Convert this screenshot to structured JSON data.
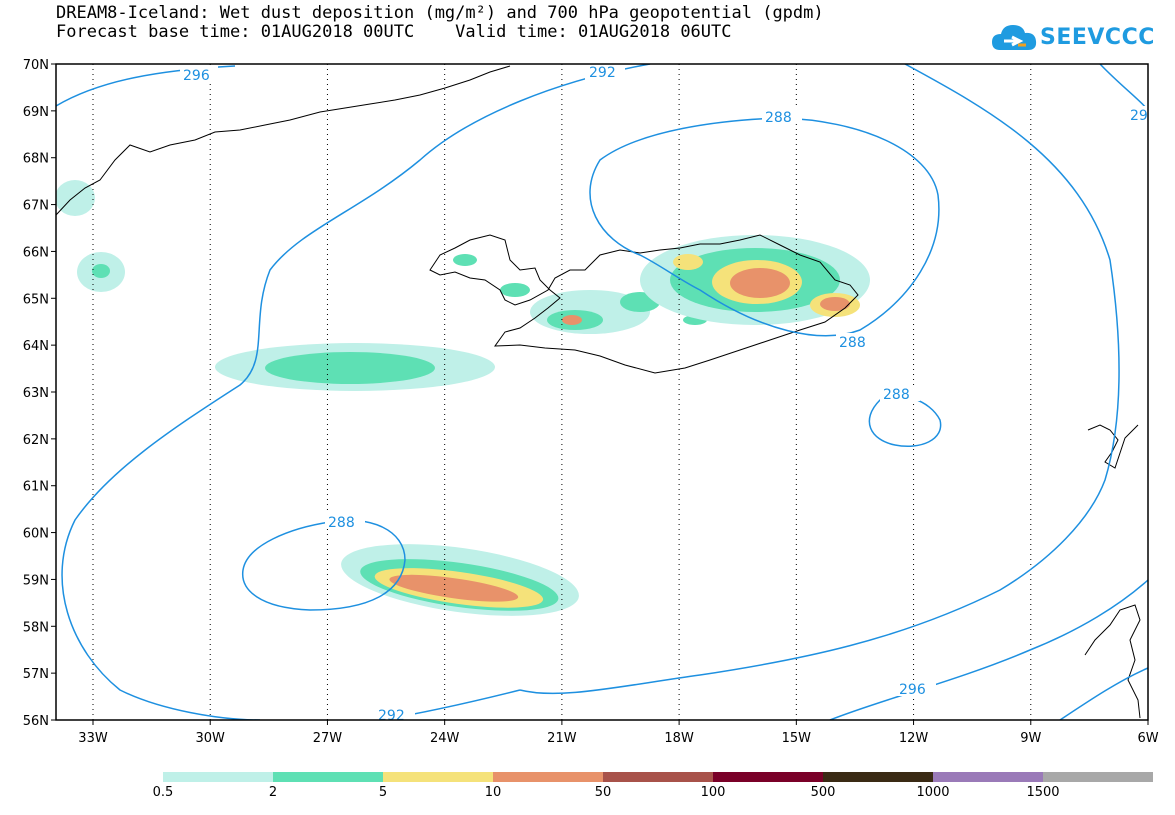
{
  "title": {
    "line1": "DREAM8-Iceland: Wet dust deposition (mg/m²) and 700 hPa geopotential (gpdm)",
    "line2": "Forecast base time: 01AUG2018 00UTC    Valid time: 01AUG2018 06UTC"
  },
  "logo": {
    "text": "SEEVCCC",
    "icon": "cloud-icon",
    "color": "#1f9be0"
  },
  "axes": {
    "lat_labels": [
      "70N",
      "69N",
      "68N",
      "67N",
      "66N",
      "65N",
      "64N",
      "63N",
      "62N",
      "61N",
      "60N",
      "59N",
      "58N",
      "57N",
      "56N"
    ],
    "lon_labels": [
      "33W",
      "30W",
      "27W",
      "24W",
      "21W",
      "18W",
      "15W",
      "12W",
      "9W",
      "6W"
    ]
  },
  "contour_labels": [
    "296",
    "292",
    "288",
    "288",
    "288",
    "288",
    "296",
    "292",
    "29"
  ],
  "colors": {
    "contour": "#1e90e0",
    "coast": "#000000",
    "bins": [
      "#bff0e8",
      "#5ee0b4",
      "#f5e27a",
      "#e8926a",
      "#a8524a",
      "#7a0028",
      "#3a2a14",
      "#9a7ab8",
      "#a8a8a8"
    ]
  },
  "legend": {
    "labels": [
      "0.5",
      "2",
      "5",
      "10",
      "50",
      "100",
      "500",
      "1000",
      "1500"
    ]
  }
}
